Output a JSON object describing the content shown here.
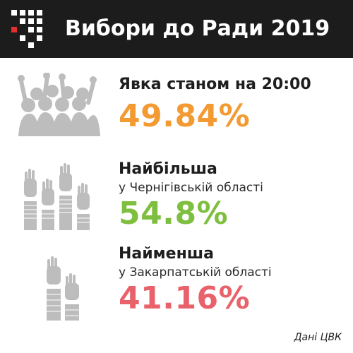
{
  "header": {
    "title": "Вибори до Ради 2019",
    "logo_icon": "dot-grid-logo-icon"
  },
  "turnout": {
    "label": "Явка станом на 20:00",
    "value": "49.84%",
    "color": "#f39a33",
    "icon": "crowd-raised-hands-icon"
  },
  "highest": {
    "label": "Найбільша",
    "region": "у Чернігівській області",
    "value": "54.8%",
    "color": "#7fbf3f",
    "icon": "four-raised-hands-icon"
  },
  "lowest": {
    "label": "Найменша",
    "region": "у Закарпатській області",
    "value": "41.16%",
    "color": "#e9626b",
    "icon": "two-raised-hands-icon"
  },
  "source": "Дані ЦВК",
  "colors": {
    "header_bg": "#1c1c1c",
    "icon_gray": "#bdbdbd"
  }
}
